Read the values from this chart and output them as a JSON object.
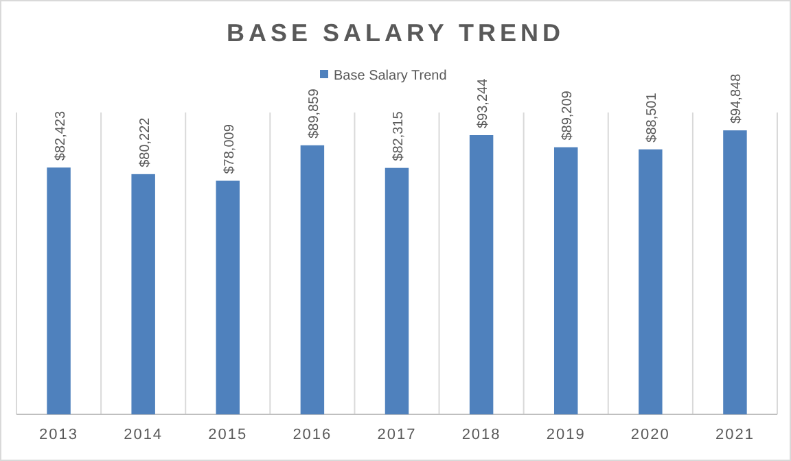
{
  "chart_data": {
    "type": "bar",
    "title": "BASE SALARY TREND",
    "categories": [
      "2013",
      "2014",
      "2015",
      "2016",
      "2017",
      "2018",
      "2019",
      "2020",
      "2021"
    ],
    "series": [
      {
        "name": "Base Salary Trend",
        "color": "#4f81bd",
        "values": [
          82423,
          80222,
          78009,
          89859,
          82315,
          93244,
          89209,
          88501,
          94848
        ],
        "value_labels": [
          "$82,423",
          "$80,222",
          "$78,009",
          "$89,859",
          "$82,315",
          "$93,244",
          "$89,209",
          "$88,501",
          "$94,848"
        ]
      }
    ],
    "legend": "top",
    "grid": "x"
  }
}
